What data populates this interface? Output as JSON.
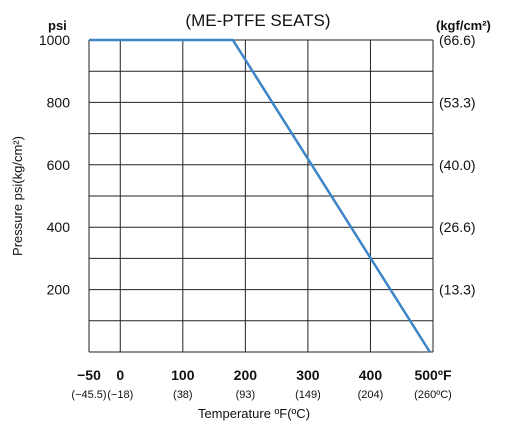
{
  "chart_data": {
    "type": "line",
    "title": "(ME-PTFE SEATS)",
    "y_unit_left": "psi",
    "y_unit_right": "(kgf/cm²)",
    "ylabel": "Pressure psi(kg/cm²)",
    "xlabel": "Temperature ºF(ºC)",
    "xlim": [
      -50,
      500
    ],
    "ylim": [
      0,
      1000
    ],
    "x_ticks": [
      {
        "value": -50,
        "label": "−50",
        "sub": "(−45.5)"
      },
      {
        "value": 0,
        "label": "0",
        "sub": "(−18)"
      },
      {
        "value": 100,
        "label": "100",
        "sub": "(38)"
      },
      {
        "value": 200,
        "label": "200",
        "sub": "(93)"
      },
      {
        "value": 300,
        "label": "300",
        "sub": "(149)"
      },
      {
        "value": 400,
        "label": "400",
        "sub": "(204)"
      },
      {
        "value": 500,
        "label": "500ºF",
        "sub": "(260ºC)"
      }
    ],
    "y_ticks": [
      {
        "value": 200,
        "label": "200"
      },
      {
        "value": 400,
        "label": "400"
      },
      {
        "value": 600,
        "label": "600"
      },
      {
        "value": 800,
        "label": "800"
      },
      {
        "value": 1000,
        "label": "1000"
      }
    ],
    "y_ticks_right": [
      {
        "value": 200,
        "label": "(13.3)"
      },
      {
        "value": 400,
        "label": "(26.6)"
      },
      {
        "value": 600,
        "label": "(40.0)"
      },
      {
        "value": 800,
        "label": "(53.3)"
      },
      {
        "value": 1000,
        "label": "(66.6)"
      }
    ],
    "grid": true,
    "grid_y_step": 100,
    "series": [
      {
        "color": "#3d85c6",
        "x": [
          -50,
          180,
          495
        ],
        "y": [
          1000,
          1000,
          0
        ]
      }
    ]
  }
}
